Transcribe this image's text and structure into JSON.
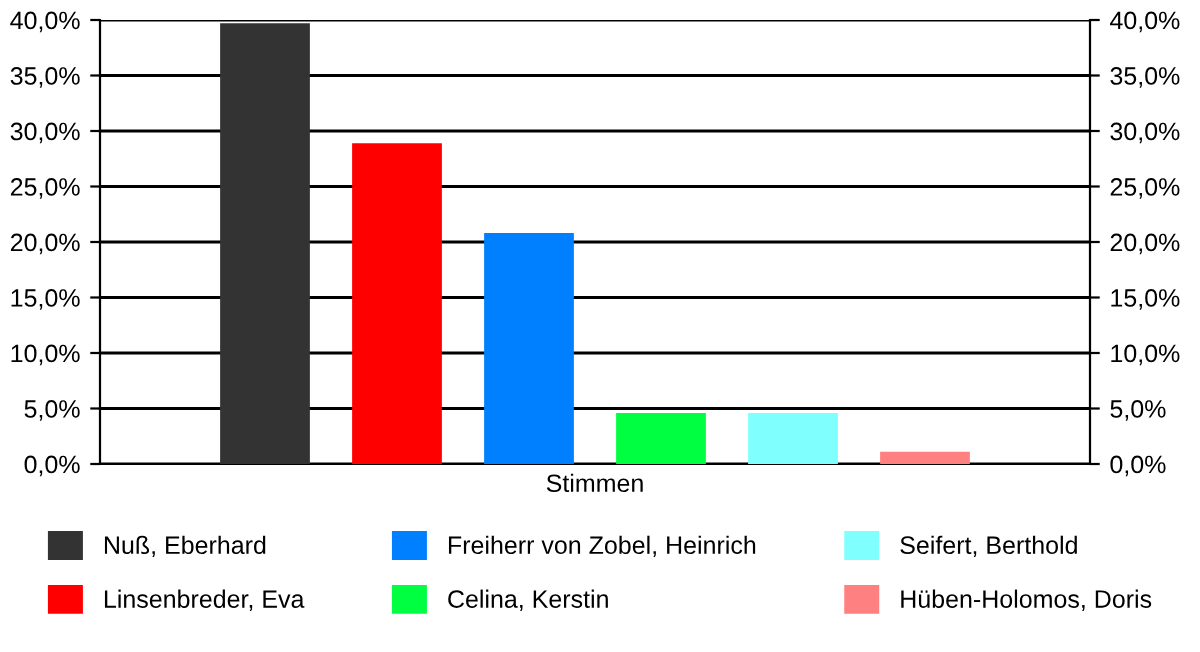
{
  "chart_data": {
    "type": "bar",
    "categories": [
      "Stimmen"
    ],
    "series": [
      {
        "name": "Nuß, Eberhard",
        "color": "#333333",
        "values": [
          39.7
        ]
      },
      {
        "name": "Linsenbreder, Eva",
        "color": "#ff0000",
        "values": [
          28.9
        ]
      },
      {
        "name": "Freiherr von Zobel, Heinrich",
        "color": "#0080ff",
        "values": [
          20.8
        ]
      },
      {
        "name": "Celina, Kerstin",
        "color": "#00ff40",
        "values": [
          4.6
        ]
      },
      {
        "name": "Seifert, Berthold",
        "color": "#80ffff",
        "values": [
          4.6
        ]
      },
      {
        "name": "Hüben-Holomos, Doris",
        "color": "#ff8080",
        "values": [
          1.1
        ]
      }
    ],
    "ylim": [
      0,
      40
    ],
    "yticks": [
      {
        "value": 0,
        "label": "0,0%"
      },
      {
        "value": 5,
        "label": "5,0%"
      },
      {
        "value": 10,
        "label": "10,0%"
      },
      {
        "value": 15,
        "label": "15,0%"
      },
      {
        "value": 20,
        "label": "20,0%"
      },
      {
        "value": 25,
        "label": "25,0%"
      },
      {
        "value": 30,
        "label": "30,0%"
      },
      {
        "value": 35,
        "label": "35,0%"
      },
      {
        "value": 40,
        "label": "40,0%"
      }
    ],
    "grid": "y",
    "legend": "bottom"
  }
}
